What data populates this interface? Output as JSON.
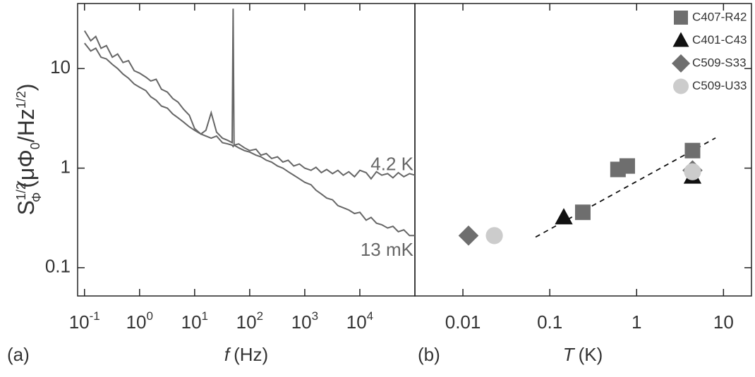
{
  "chart_data": [
    {
      "type": "line",
      "panel_label": "(a)",
      "xlabel": [
        "f",
        "(Hz)"
      ],
      "ylabel": [
        "S",
        "1/2",
        "Φ",
        "(μΦ",
        "0",
        "/Hz",
        "1/2",
        ")"
      ],
      "log_x": true,
      "log_y": true,
      "xlim": [
        0.075,
        100000
      ],
      "ylim": [
        0.052,
        45
      ],
      "xticks": [
        {
          "value": 0.1,
          "label": "10",
          "exponent": "-1"
        },
        {
          "value": 1,
          "label": "10",
          "exponent": "0"
        },
        {
          "value": 10,
          "label": "10",
          "exponent": "1"
        },
        {
          "value": 100,
          "label": "10",
          "exponent": "2"
        },
        {
          "value": 1000,
          "label": "10",
          "exponent": "3"
        },
        {
          "value": 10000,
          "label": "10",
          "exponent": "4"
        }
      ],
      "yticks": [
        0.1,
        1,
        10
      ],
      "series": [
        {
          "name": "4.2 K",
          "color": "#666666",
          "x": [
            0.1,
            0.13,
            0.16,
            0.2,
            0.25,
            0.32,
            0.4,
            0.5,
            0.63,
            0.8,
            1,
            1.3,
            1.6,
            2,
            2.5,
            3.2,
            4,
            5,
            6.3,
            8,
            10,
            13,
            16,
            20,
            25,
            32,
            40,
            48,
            50,
            52,
            63,
            80,
            100,
            130,
            160,
            200,
            250,
            320,
            400,
            500,
            630,
            800,
            1000,
            1300,
            1600,
            2000,
            2500,
            3200,
            4000,
            5000,
            6300,
            8000,
            10000,
            13000,
            16000,
            20000,
            25000,
            32000,
            40000,
            50000,
            63000,
            80000,
            100000
          ],
          "values": [
            24,
            19,
            21,
            16,
            17,
            13,
            14,
            11.5,
            12,
            9.5,
            9,
            8.2,
            7.5,
            7.8,
            6.2,
            5.8,
            5,
            4.6,
            3.9,
            3.4,
            2.5,
            2.2,
            2.4,
            3.6,
            2.3,
            2.0,
            1.9,
            1.8,
            40,
            1.7,
            1.75,
            1.6,
            1.5,
            1.55,
            1.35,
            1.4,
            1.25,
            1.3,
            1.15,
            1.2,
            1.05,
            1.1,
            1.0,
            0.95,
            1.02,
            0.9,
            0.97,
            0.88,
            0.95,
            0.85,
            0.92,
            0.82,
            0.95,
            0.9,
            0.78,
            0.92,
            0.85,
            0.88,
            0.8,
            0.9,
            0.82,
            0.88,
            0.85
          ]
        },
        {
          "name": "13 mK",
          "color": "#666666",
          "x": [
            0.1,
            0.13,
            0.16,
            0.2,
            0.25,
            0.32,
            0.4,
            0.5,
            0.63,
            0.8,
            1,
            1.3,
            1.6,
            2,
            2.5,
            3.2,
            4,
            5,
            6.3,
            8,
            10,
            13,
            16,
            20,
            25,
            32,
            40,
            48,
            50,
            52,
            63,
            80,
            100,
            130,
            160,
            200,
            250,
            320,
            400,
            500,
            630,
            800,
            1000,
            1300,
            1600,
            2000,
            2500,
            3200,
            4000,
            5000,
            6300,
            8000,
            10000,
            13000,
            16000,
            20000,
            25000,
            32000,
            40000,
            50000,
            63000,
            80000,
            100000
          ],
          "values": [
            18,
            15,
            16,
            13,
            12.5,
            11,
            10,
            8.8,
            8,
            7,
            6.5,
            6,
            5.2,
            4.8,
            4.2,
            4,
            3.5,
            3.2,
            2.9,
            2.6,
            2.4,
            2.2,
            2.1,
            2.0,
            2.1,
            1.8,
            1.75,
            1.7,
            1.65,
            1.7,
            1.6,
            1.5,
            1.45,
            1.35,
            1.3,
            1.2,
            1.15,
            1.05,
            1.0,
            0.92,
            0.85,
            0.78,
            0.72,
            0.68,
            0.6,
            0.55,
            0.5,
            0.48,
            0.42,
            0.4,
            0.38,
            0.35,
            0.36,
            0.3,
            0.32,
            0.28,
            0.27,
            0.25,
            0.26,
            0.23,
            0.24,
            0.21,
            0.21
          ]
        }
      ]
    },
    {
      "type": "scatter",
      "panel_label": "(b)",
      "xlabel": [
        "T",
        "(K)"
      ],
      "log_x": true,
      "log_y": true,
      "legend": "top-right",
      "xlim": [
        0.0028,
        21
      ],
      "ylim": [
        0.052,
        45
      ],
      "xticks": [
        0.01,
        0.1,
        1,
        10
      ],
      "series": [
        {
          "name": "C407-R42",
          "color": "#6e6e6e",
          "marker": "square",
          "x": [
            0.24,
            0.61,
            0.78,
            4.4
          ],
          "values": [
            0.36,
            0.97,
            1.05,
            1.5
          ]
        },
        {
          "name": "C401-C43",
          "color": "#111111",
          "marker": "triangle",
          "x": [
            0.145,
            4.4
          ],
          "values": [
            0.32,
            0.82
          ]
        },
        {
          "name": "C509-S33",
          "color": "#6e6e6e",
          "marker": "diamond",
          "x": [
            0.0116,
            4.4
          ],
          "values": [
            0.21,
            0.95
          ]
        },
        {
          "name": "C509-U33",
          "color": "#cccccc",
          "marker": "circle",
          "x": [
            0.023,
            4.4
          ],
          "values": [
            0.21,
            0.92
          ]
        }
      ],
      "fit_line": {
        "color": "#111111",
        "x": [
          0.0687,
          8.1
        ],
        "values": [
          0.203,
          2.01
        ]
      }
    }
  ]
}
